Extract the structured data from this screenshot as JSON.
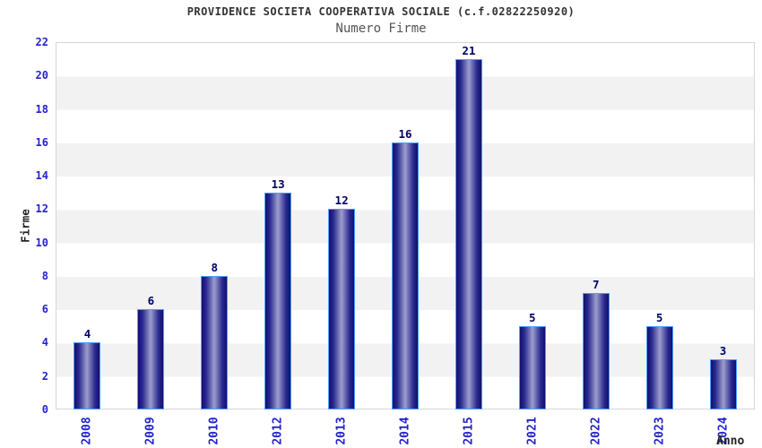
{
  "header": {
    "title": "PROVIDENCE SOCIETA COOPERATIVA SOCIALE (c.f.02822250920)",
    "subtitle": "Numero Firme"
  },
  "chart_data": {
    "type": "bar",
    "title": "PROVIDENCE SOCIETA COOPERATIVA SOCIALE (c.f.02822250920)",
    "subtitle": "Numero Firme",
    "categories": [
      "2008",
      "2009",
      "2010",
      "2012",
      "2013",
      "2014",
      "2015",
      "2021",
      "2022",
      "2023",
      "2024"
    ],
    "values": [
      4,
      6,
      8,
      13,
      12,
      16,
      21,
      5,
      7,
      5,
      3
    ],
    "xlabel": "Anno",
    "ylabel": "Firme",
    "ylim": [
      0,
      22
    ],
    "ytick_step": 2,
    "yticks": [
      0,
      2,
      4,
      6,
      8,
      10,
      12,
      14,
      16,
      18,
      20,
      22
    ],
    "grid": "horizontal-alternating-bands",
    "legend": "none",
    "colors": {
      "tick_label": "#2323cc",
      "value_label": "#000066",
      "title": "#333333",
      "subtitle": "#555555",
      "axis_label": "#222222",
      "band_gray": "#f2f2f2",
      "band_white": "#ffffff",
      "plot_border": "#d6d6d6",
      "bar_border": "#4e9eff",
      "bar_dark": "#10106e",
      "bar_mid": "#2a2a90",
      "bar_light": "#9d9dcd"
    }
  }
}
